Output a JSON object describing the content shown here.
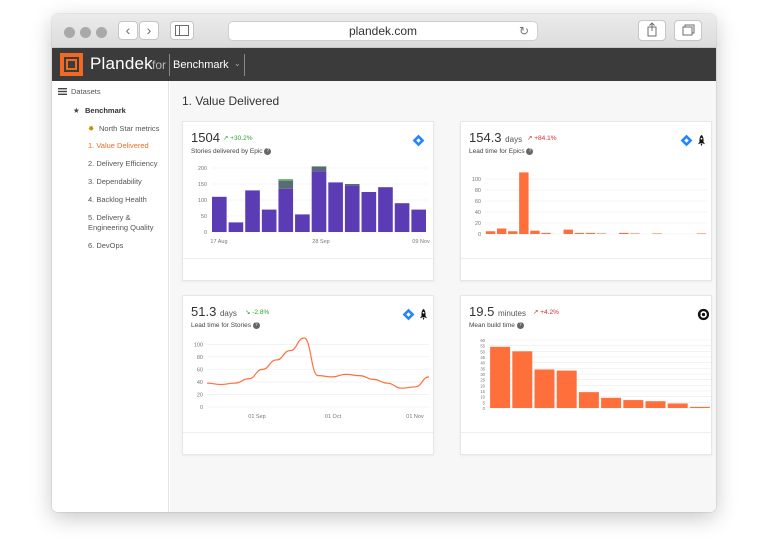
{
  "browser": {
    "url": "plandek.com"
  },
  "app": {
    "brand": "Plandek",
    "brand_for": "for",
    "selector": "Benchmark"
  },
  "sidebar": {
    "datasets": "Datasets",
    "benchmark": "Benchmark",
    "items": [
      {
        "label": "North Star metrics"
      },
      {
        "label": "1. Value Delivered",
        "active": true
      },
      {
        "label": "2. Delivery Efficiency"
      },
      {
        "label": "3. Dependability"
      },
      {
        "label": "4. Backlog Health"
      },
      {
        "label": "5. Delivery &"
      },
      {
        "label": "Engineering Quality"
      },
      {
        "label": "6. DevOps"
      }
    ]
  },
  "page": {
    "title": "1. Value Delivered"
  },
  "cards": [
    {
      "value": "1504",
      "unit": "",
      "delta": "+30.2%",
      "subtitle": "Stories delivered by Epic",
      "sources": [
        "jira-icon"
      ]
    },
    {
      "value": "154.3",
      "unit": "days",
      "delta": "+84.1%",
      "subtitle": "Lead time for Epics",
      "sources": [
        "jira-icon",
        "rocket-icon"
      ]
    },
    {
      "value": "51.3",
      "unit": "days",
      "delta": "-2.8%",
      "subtitle": "Lead time for Stories",
      "sources": [
        "jira-icon",
        "rocket-icon"
      ]
    },
    {
      "value": "19.5",
      "unit": "minutes",
      "delta": "+4.2%",
      "subtitle": "Mean build time",
      "sources": [
        "circleci-icon"
      ]
    }
  ],
  "colors": {
    "accent": "#f26a22",
    "bar_purple": "#5b3cb5",
    "bar_orange": "#ff6f3c",
    "delta_up": "#2ca02c",
    "delta_down": "#d62728"
  },
  "chart_data": [
    {
      "type": "bar",
      "title": "Stories delivered by Epic",
      "ylim": [
        0,
        200
      ],
      "yticks": [
        0,
        50,
        100,
        150,
        200
      ],
      "xticklabels": [
        "17 Aug",
        "28 Sep",
        "09 Nov"
      ],
      "series": [
        {
          "color": "#5b3cb5",
          "values": [
            110,
            30,
            130,
            70,
            135,
            55,
            190,
            155,
            145,
            125,
            140,
            90,
            70
          ]
        },
        {
          "color": "#5a6b78",
          "values": [
            0,
            0,
            0,
            0,
            25,
            0,
            15,
            0,
            5,
            0,
            0,
            0,
            0
          ]
        },
        {
          "color": "#4caf50",
          "values": [
            0,
            0,
            0,
            0,
            5,
            0,
            0,
            0,
            0,
            0,
            0,
            0,
            0
          ]
        }
      ]
    },
    {
      "type": "bar",
      "title": "Lead time for Epics",
      "ylim": [
        0,
        120
      ],
      "yticks": [
        0,
        20,
        40,
        60,
        80,
        100
      ],
      "values": [
        5,
        10,
        5,
        112,
        6,
        2,
        0,
        8,
        2,
        2,
        1,
        0,
        2,
        1,
        0,
        1,
        0,
        0,
        0,
        1
      ],
      "color": "#ff6f3c"
    },
    {
      "type": "line",
      "title": "Lead time for Stories",
      "ylim": [
        0,
        110
      ],
      "yticks": [
        0,
        20,
        40,
        60,
        80,
        100
      ],
      "xticklabels": [
        "01 Sep",
        "01 Oct",
        "01 Nov"
      ],
      "values": [
        38,
        36,
        38,
        45,
        60,
        75,
        90,
        110,
        50,
        48,
        52,
        50,
        44,
        38,
        30,
        32,
        48
      ],
      "color": "#ff6f3c"
    },
    {
      "type": "bar",
      "title": "Mean build time",
      "ylim": [
        0,
        60
      ],
      "yticks": [
        0,
        5,
        10,
        15,
        20,
        25,
        30,
        35,
        40,
        45,
        50,
        55,
        60
      ],
      "values": [
        54,
        50,
        34,
        33,
        14,
        9,
        7,
        6,
        4,
        1
      ],
      "color": "#ff6f3c"
    }
  ]
}
